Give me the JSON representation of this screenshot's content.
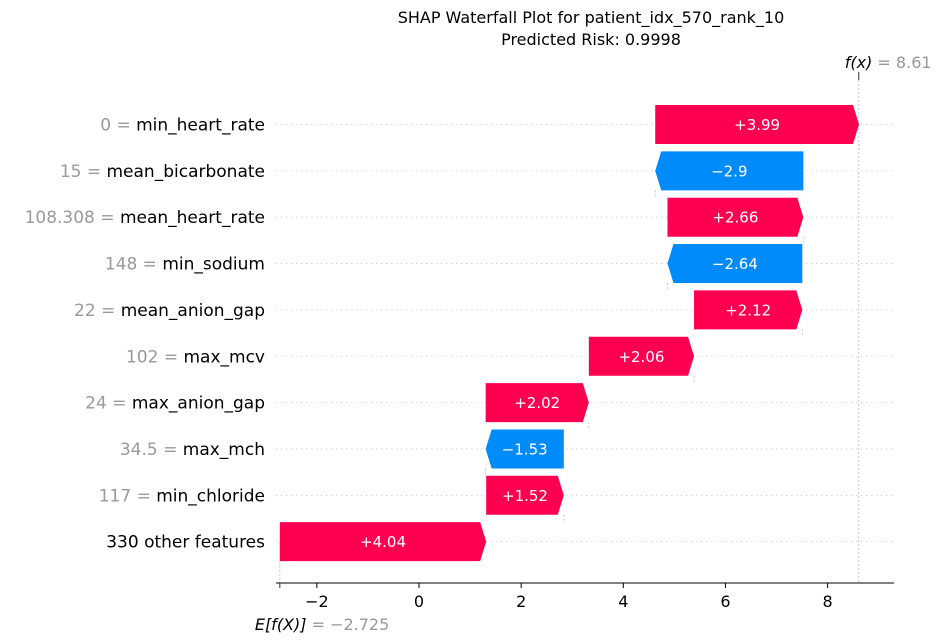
{
  "chart_data": {
    "type": "waterfall",
    "title": "SHAP Waterfall Plot for patient_idx_570_rank_10",
    "subtitle": "Predicted Risk: 0.9998",
    "base_value_label": "E[f(X)]",
    "base_value_text": "= −2.725",
    "base_value": -2.725,
    "output_label": "f(x)",
    "output_value_text": "= 8.61",
    "output_value": 8.61,
    "xlim": [
      -2.8,
      9.3
    ],
    "xticks": [
      -2,
      0,
      2,
      4,
      6,
      8
    ],
    "xtick_labels": [
      "−2",
      "0",
      "2",
      "4",
      "6",
      "8"
    ],
    "colors": {
      "positive": "#ff0051",
      "negative": "#008bfb"
    },
    "features": [
      {
        "value": "0",
        "name": "min_heart_rate",
        "shap": 3.99,
        "label": "+3.99"
      },
      {
        "value": "15",
        "name": "mean_bicarbonate",
        "shap": -2.9,
        "label": "−2.9"
      },
      {
        "value": "108.308",
        "name": "mean_heart_rate",
        "shap": 2.66,
        "label": "+2.66"
      },
      {
        "value": "148",
        "name": "min_sodium",
        "shap": -2.64,
        "label": "−2.64"
      },
      {
        "value": "22",
        "name": "mean_anion_gap",
        "shap": 2.12,
        "label": "+2.12"
      },
      {
        "value": "102",
        "name": "max_mcv",
        "shap": 2.06,
        "label": "+2.06"
      },
      {
        "value": "24",
        "name": "max_anion_gap",
        "shap": 2.02,
        "label": "+2.02"
      },
      {
        "value": "34.5",
        "name": "max_mch",
        "shap": -1.53,
        "label": "−1.53"
      },
      {
        "value": "117",
        "name": "min_chloride",
        "shap": 1.52,
        "label": "+1.52"
      },
      {
        "value": "",
        "name": "330 other features",
        "shap": 4.04,
        "label": "+4.04"
      }
    ]
  }
}
